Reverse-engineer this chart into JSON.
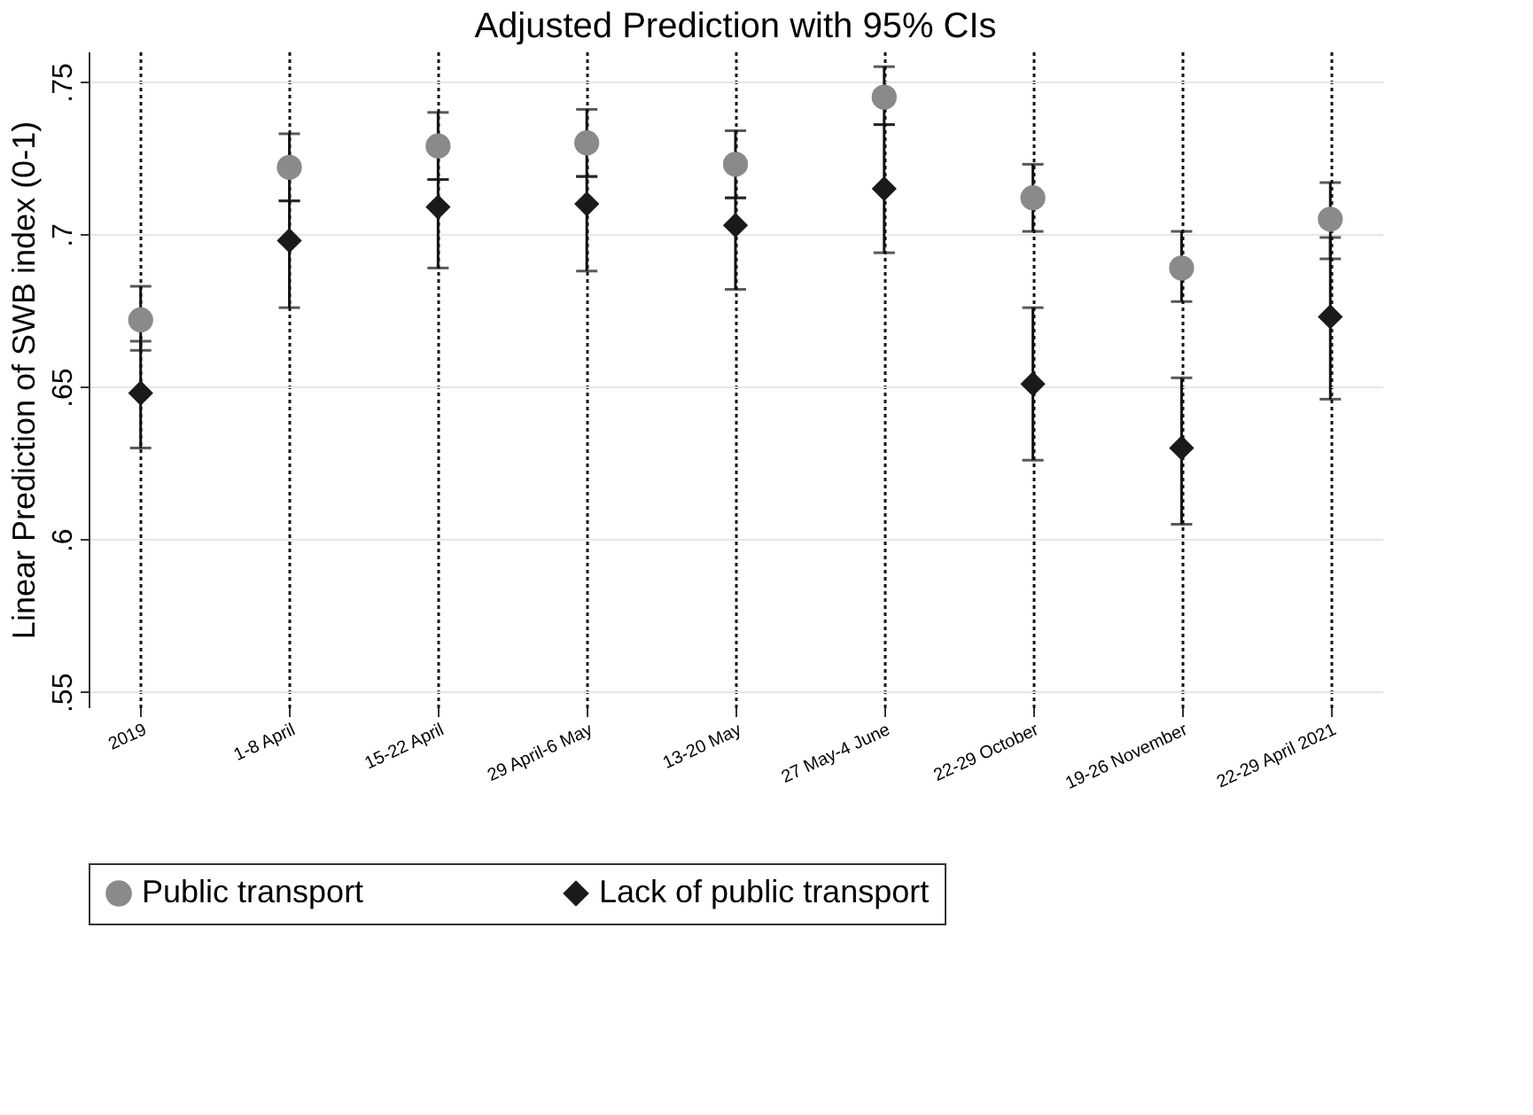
{
  "chart_data": {
    "type": "scatter",
    "title": "Adjusted Prediction with 95% CIs",
    "ylabel": "Linear Prediction of SWB index (0-1)",
    "categories": [
      "2019",
      "1-8 April",
      "15-22 April",
      "29 April-6 May",
      "13-20 May",
      "27 May-4 June",
      "22-29 October",
      "19-26 November",
      "22-29 April 2021"
    ],
    "series": [
      {
        "name": "Public transport",
        "color": "#8a8a8a",
        "marker": "circle",
        "values": [
          0.672,
          0.722,
          0.729,
          0.73,
          0.723,
          0.745,
          0.712,
          0.689,
          0.705
        ],
        "errors": [
          [
            0.662,
            0.683
          ],
          [
            0.711,
            0.733
          ],
          [
            0.718,
            0.74
          ],
          [
            0.719,
            0.741
          ],
          [
            0.712,
            0.734
          ],
          [
            0.736,
            0.755
          ],
          [
            0.701,
            0.723
          ],
          [
            0.678,
            0.701
          ],
          [
            0.692,
            0.717
          ]
        ]
      },
      {
        "name": "Lack of public transport",
        "color": "#1a1a1a",
        "marker": "diamond",
        "values": [
          0.648,
          0.698,
          0.709,
          0.71,
          0.703,
          0.715,
          0.651,
          0.63,
          0.673
        ],
        "errors": [
          [
            0.63,
            0.665
          ],
          [
            0.676,
            0.711
          ],
          [
            0.689,
            0.718
          ],
          [
            0.688,
            0.719
          ],
          [
            0.682,
            0.712
          ],
          [
            0.694,
            0.736
          ],
          [
            0.626,
            0.676
          ],
          [
            0.605,
            0.653
          ],
          [
            0.646,
            0.699
          ]
        ]
      }
    ],
    "ylim": [
      0.545,
      0.76
    ],
    "yticks": [
      {
        "value": 0.55,
        "label": ".55"
      },
      {
        "value": 0.6,
        "label": ".6"
      },
      {
        "value": 0.65,
        "label": ".65"
      },
      {
        "value": 0.7,
        "label": ".7"
      },
      {
        "value": 0.75,
        "label": ".75"
      }
    ],
    "grid": true,
    "legend": "bottom"
  }
}
